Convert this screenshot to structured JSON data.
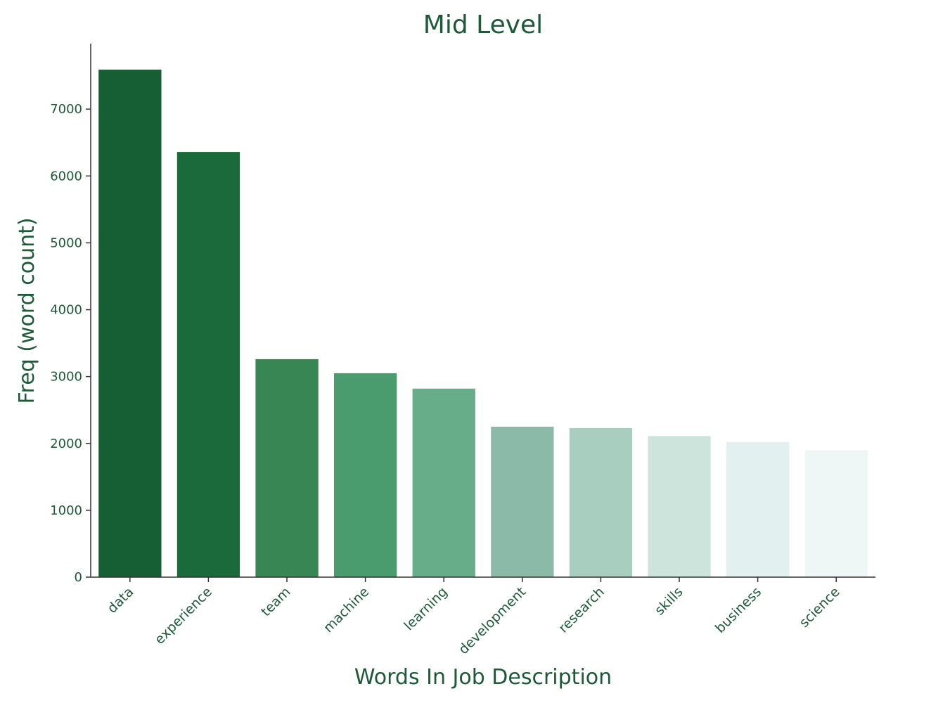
{
  "chart_data": {
    "type": "bar",
    "title": "Mid Level",
    "xlabel": "Words In Job Description",
    "ylabel": "Freq (word count)",
    "categories": [
      "data",
      "experience",
      "team",
      "machine",
      "learning",
      "development",
      "research",
      "skills",
      "business",
      "science"
    ],
    "values": [
      7590,
      6360,
      3260,
      3050,
      2820,
      2250,
      2230,
      2110,
      2020,
      1900
    ],
    "colors": [
      "#165e33",
      "#1b6a3b",
      "#388654",
      "#4a9c6e",
      "#68ad8a",
      "#8bbba8",
      "#a8cec0",
      "#cde4dd",
      "#e2f1ef",
      "#eef7f5"
    ],
    "yticks": [
      0,
      1000,
      2000,
      3000,
      4000,
      5000,
      6000,
      7000
    ],
    "ylim": [
      0,
      7980
    ],
    "grid": false,
    "text_color": "#1d5a38",
    "axis_color": "#333333"
  }
}
